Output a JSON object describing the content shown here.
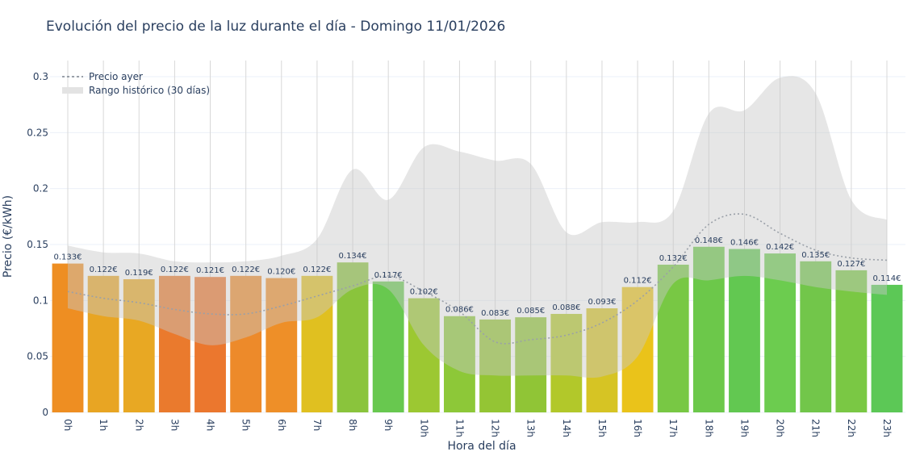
{
  "chart_data": {
    "type": "bar",
    "title": "Evolución del precio de la luz durante el día - Domingo 11/01/2026",
    "xlabel": "Hora del día",
    "ylabel": "Precio (€/kWh)",
    "ylim": [
      0,
      0.31
    ],
    "yticks": [
      0,
      0.05,
      0.1,
      0.15,
      0.2,
      0.25,
      0.3
    ],
    "ytick_labels": [
      "0",
      "0.05",
      "0.1",
      "0.15",
      "0.2",
      "0.25",
      "0.3"
    ],
    "grid": true,
    "legend_position": "top-left",
    "categories": [
      "0h",
      "1h",
      "2h",
      "3h",
      "4h",
      "5h",
      "6h",
      "7h",
      "8h",
      "9h",
      "10h",
      "11h",
      "12h",
      "13h",
      "14h",
      "15h",
      "16h",
      "17h",
      "18h",
      "19h",
      "20h",
      "21h",
      "22h",
      "23h"
    ],
    "values": [
      0.133,
      0.122,
      0.119,
      0.122,
      0.121,
      0.122,
      0.12,
      0.122,
      0.134,
      0.117,
      0.102,
      0.086,
      0.083,
      0.085,
      0.088,
      0.093,
      0.112,
      0.132,
      0.148,
      0.146,
      0.142,
      0.135,
      0.127,
      0.114
    ],
    "data_labels": [
      "0.133€",
      "0.122€",
      "0.119€",
      "0.122€",
      "0.121€",
      "0.122€",
      "0.120€",
      "0.122€",
      "0.134€",
      "0.117€",
      "0.102€",
      "0.086€",
      "0.083€",
      "0.085€",
      "0.088€",
      "0.093€",
      "0.112€",
      "0.132€",
      "0.148€",
      "0.146€",
      "0.142€",
      "0.135€",
      "0.127€",
      "0.114€"
    ],
    "bar_colors": [
      "#ee8e22",
      "#e8a523",
      "#e8a823",
      "#ea7a2d",
      "#eb772e",
      "#ed8a2a",
      "#ee8f28",
      "#e0c020",
      "#8ac43c",
      "#68c84f",
      "#9cc832",
      "#8dc838",
      "#94c534",
      "#90c536",
      "#b2c82a",
      "#d6c424",
      "#eac31a",
      "#78c844",
      "#6cc84a",
      "#62c851",
      "#6ccc4f",
      "#72c64a",
      "#7ac844",
      "#5cc856"
    ],
    "series": [
      {
        "name": "Precio ayer",
        "type": "line",
        "style": "dotted",
        "color": "#9aa0a8",
        "values": [
          0.108,
          0.102,
          0.098,
          0.092,
          0.088,
          0.088,
          0.095,
          0.104,
          0.113,
          0.122,
          0.108,
          0.09,
          0.063,
          0.065,
          0.069,
          0.08,
          0.1,
          0.13,
          0.168,
          0.177,
          0.16,
          0.145,
          0.138,
          0.136
        ]
      },
      {
        "name": "Rango histórico (30 días)",
        "type": "band",
        "color": "#d3d3d3",
        "upper": [
          0.149,
          0.143,
          0.142,
          0.135,
          0.134,
          0.135,
          0.14,
          0.155,
          0.217,
          0.19,
          0.237,
          0.233,
          0.225,
          0.222,
          0.161,
          0.17,
          0.17,
          0.18,
          0.267,
          0.27,
          0.299,
          0.285,
          0.19,
          0.172
        ],
        "lower": [
          0.093,
          0.086,
          0.082,
          0.07,
          0.06,
          0.067,
          0.08,
          0.085,
          0.11,
          0.11,
          0.06,
          0.037,
          0.033,
          0.033,
          0.033,
          0.032,
          0.05,
          0.115,
          0.118,
          0.122,
          0.118,
          0.112,
          0.108,
          0.105
        ]
      }
    ]
  }
}
